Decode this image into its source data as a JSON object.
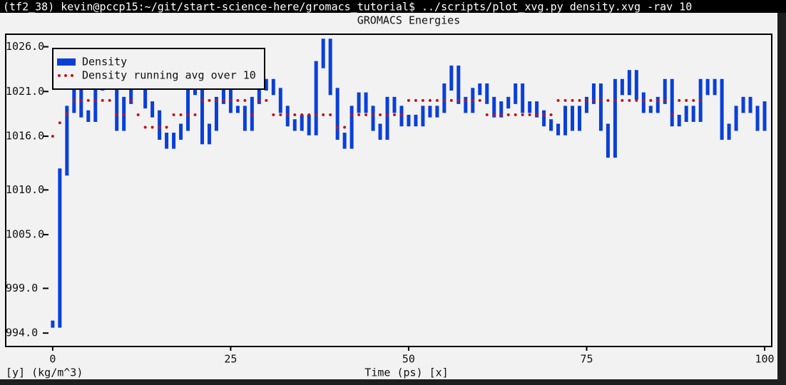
{
  "terminal": {
    "prompt": "(tf2_38) kevin@pccp15:~/git/start-science-here/gromacs_tutorial$ ../scripts/plot_xvg.py density.xvg -rav 10"
  },
  "chart_data": {
    "type": "line",
    "title": "GROMACS Energies",
    "x_label": "Time (ps) [x]",
    "y_label": "[y] (kg/m^3)",
    "x": [
      0,
      1,
      2,
      3,
      4,
      5,
      6,
      7,
      8,
      9,
      10,
      11,
      12,
      13,
      14,
      15,
      16,
      17,
      18,
      19,
      20,
      21,
      22,
      23,
      24,
      25,
      26,
      27,
      28,
      29,
      30,
      31,
      32,
      33,
      34,
      35,
      36,
      37,
      38,
      39,
      40,
      41,
      42,
      43,
      44,
      45,
      46,
      47,
      48,
      49,
      50,
      51,
      52,
      53,
      54,
      55,
      56,
      57,
      58,
      59,
      60,
      61,
      62,
      63,
      64,
      65,
      66,
      67,
      68,
      69,
      70,
      71,
      72,
      73,
      74,
      75,
      76,
      77,
      78,
      79,
      80,
      81,
      82,
      83,
      84,
      85,
      86,
      87,
      88,
      89,
      90,
      91,
      92,
      93,
      94,
      95,
      96,
      97,
      98,
      99,
      100
    ],
    "series": [
      {
        "name": "Density",
        "color": "#0a3fd8",
        "style": "bars",
        "values": [
          995,
          1012,
          1019,
          1022,
          1018.5,
          1018,
          1021.5,
          1022,
          1022,
          1017,
          1020,
          1022,
          1022,
          1019.5,
          1018.5,
          1016,
          1015,
          1016,
          1017,
          1021.5,
          1021,
          1015.5,
          1017,
          1020,
          1021.5,
          1019,
          1019,
          1017,
          1020,
          1021.5,
          1022,
          1021,
          1019,
          1017.5,
          1017,
          1018,
          1016.5,
          1024,
          1026.5,
          1021,
          1016,
          1015,
          1019,
          1020.5,
          1019,
          1017,
          1016,
          1020,
          1019,
          1017.5,
          1018,
          1017.5,
          1019,
          1018.5,
          1019,
          1021.5,
          1023.5,
          1020,
          1019,
          1021,
          1021.5,
          1020,
          1018.5,
          1019.5,
          1020,
          1021.5,
          1019,
          1019.5,
          1018.5,
          1017.5,
          1017,
          1016.5,
          1019,
          1017,
          1019,
          1020,
          1021.5,
          1017,
          1014,
          1022,
          1021,
          1023,
          1020.5,
          1019,
          1019,
          1020,
          1022,
          1017.5,
          1018,
          1019,
          1018,
          1022,
          1021,
          1022,
          1016,
          1017,
          1019,
          1020,
          1019,
          1017,
          1019.5
        ]
      },
      {
        "name": "Density running avg over 10",
        "color": "#c0141c",
        "style": "dots",
        "values": [
          1016,
          1017.5,
          1018.5,
          1020,
          1020,
          1020,
          1020,
          1020,
          1020,
          1018.4,
          1018.4,
          1020,
          1018.4,
          1017,
          1017,
          1017,
          1017,
          1018.4,
          1018.4,
          1018.4,
          1018.4,
          1020,
          1020,
          1020,
          1020,
          1020,
          1020,
          1020,
          1018.4,
          1020,
          1020,
          1018.4,
          1018.4,
          1018.4,
          1018.4,
          1018.4,
          1018.4,
          1018.4,
          1018.4,
          1018.4,
          1017,
          1017,
          1018.4,
          1018.4,
          1018.4,
          1018.4,
          1018.4,
          1018.4,
          1018.4,
          1018.4,
          1020,
          1020,
          1020,
          1020,
          1020,
          1020,
          1020,
          1020,
          1020,
          1020,
          1020,
          1018.4,
          1018.4,
          1018.4,
          1018.4,
          1018.4,
          1018.4,
          1018.4,
          1018.4,
          1018.4,
          1018.4,
          1020,
          1020,
          1020,
          1020,
          1020,
          1020,
          1020,
          1020,
          1020,
          1020,
          1020,
          1020,
          1020,
          1020,
          1020,
          1020,
          1018.4,
          1020,
          1020,
          1020,
          1020,
          null,
          null,
          null,
          null,
          null,
          null,
          null,
          null,
          null
        ]
      }
    ],
    "xlim": [
      -6.6,
      101
    ],
    "ylim": [
      992.5,
      1027.4
    ],
    "xticks": [
      0,
      25,
      50,
      75,
      100
    ],
    "yticks": [
      {
        "value": 994,
        "label": "994.0"
      },
      {
        "value": 999,
        "label": "999.0"
      },
      {
        "value": 1005,
        "label": "1005.0"
      },
      {
        "value": 1010,
        "label": "1010.0"
      },
      {
        "value": 1016,
        "label": "1016.0"
      },
      {
        "value": 1021,
        "label": "1021.0"
      },
      {
        "value": 1026,
        "label": "1026.0"
      }
    ],
    "legend": "upper left"
  }
}
